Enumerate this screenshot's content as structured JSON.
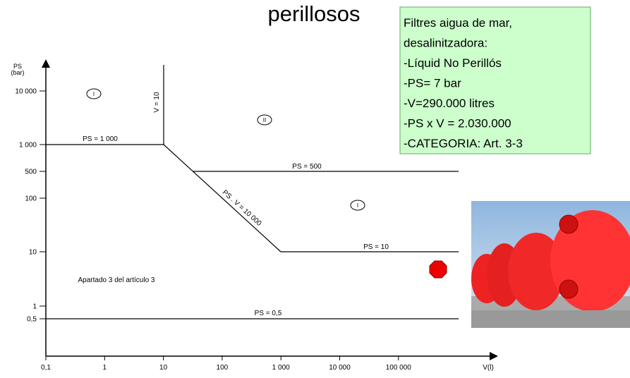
{
  "title": "perillosos",
  "note": {
    "lines": [
      "Filtres aigua de mar,",
      "desalinitzadora:",
      "-Líquid No Perillós",
      "-PS= 7 bar",
      "-V=290.000 litres",
      "-PS x V = 2.030.000",
      "-CATEGORIA: Art. 3-3"
    ]
  },
  "diagram": {
    "y_axis_label": [
      "PS",
      "(bar)"
    ],
    "x_axis_label": "V(l)",
    "y_tick_labels": [
      "10 000",
      "1 000",
      "500",
      "100",
      "10",
      "1",
      "0,5"
    ],
    "x_tick_labels": [
      "0,1",
      "1",
      "10",
      "100",
      "1 000",
      "10 000",
      "100 000"
    ],
    "line_labels": {
      "ps_1000": "PS = 1 000",
      "v_10": "V = 10",
      "ps_v": "PS . V = 10 000",
      "ps_500": "PS = 500",
      "ps_10": "PS = 10",
      "ps_05": "PS = 0,5"
    },
    "regions": [
      "I",
      "II",
      "I"
    ],
    "note": "Apartado 3 del artículo 3"
  }
}
